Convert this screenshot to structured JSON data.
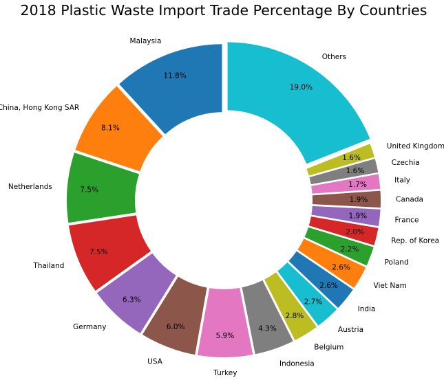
{
  "chart_data": {
    "type": "pie",
    "style": "donut",
    "title": "2018 Plastic Waste Import Trade Percentage By Countries",
    "categories": [
      "Malaysia",
      "China, Hong Kong SAR",
      "Netherlands",
      "Thailand",
      "Germany",
      "USA",
      "Turkey",
      "Indonesia",
      "Belgium",
      "Austria",
      "India",
      "Viet Nam",
      "Poland",
      "Rep. of Korea",
      "France",
      "Canada",
      "Italy",
      "Czechia",
      "United Kingdom",
      "Others"
    ],
    "values": [
      11.8,
      8.1,
      7.5,
      7.5,
      6.3,
      6.0,
      5.9,
      4.3,
      2.8,
      2.7,
      2.6,
      2.6,
      2.2,
      2.0,
      1.9,
      1.9,
      1.7,
      1.6,
      1.6,
      19.0
    ],
    "value_labels": [
      "11.8%",
      "8.1%",
      "7.5%",
      "7.5%",
      "6.3%",
      "6.0%",
      "5.9%",
      "4.3%",
      "2.8%",
      "2.7%",
      "2.6%",
      "2.6%",
      "2.2%",
      "2.0%",
      "1.9%",
      "1.9%",
      "1.7%",
      "1.6%",
      "1.6%",
      "19.0%"
    ],
    "colors": [
      "#1f77b4",
      "#ff7f0e",
      "#2ca02c",
      "#d62728",
      "#9467bd",
      "#8c564b",
      "#e377c2",
      "#7f7f7f",
      "#bcbd22",
      "#17becf",
      "#1f77b4",
      "#ff7f0e",
      "#2ca02c",
      "#d62728",
      "#9467bd",
      "#8c564b",
      "#e377c2",
      "#7f7f7f",
      "#bcbd22",
      "#17becf"
    ],
    "start_angle_deg": 90,
    "direction": "counterclockwise",
    "legend": "none"
  }
}
